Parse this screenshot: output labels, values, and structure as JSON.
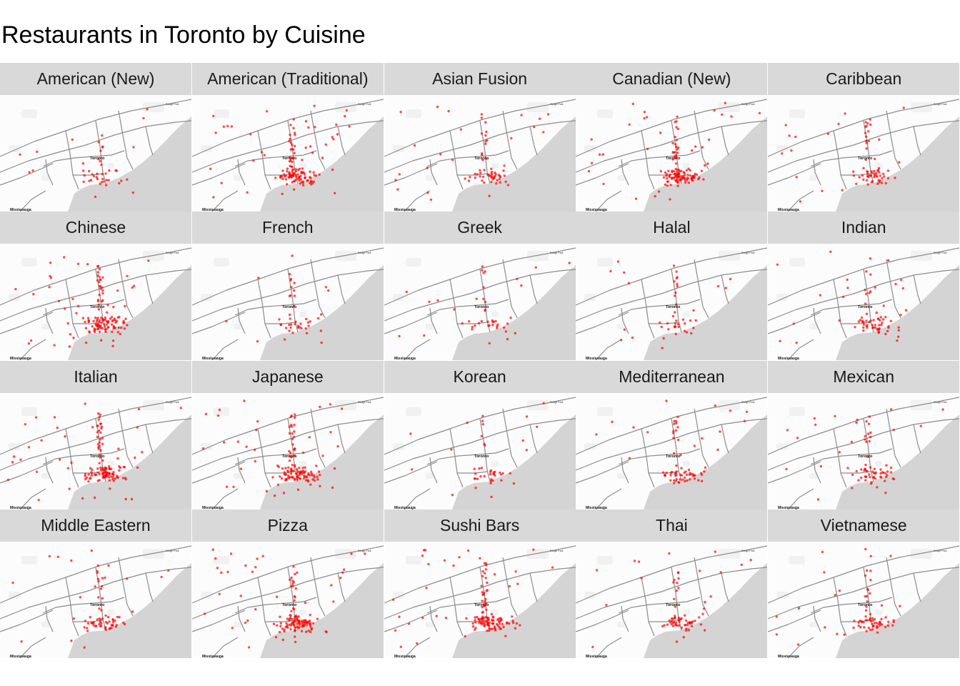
{
  "title": "Restaurants in Toronto by Cuisine",
  "map_labels": {
    "city": "Toronto",
    "west": "Mississauga",
    "park": "Rouge Park"
  },
  "colors": {
    "points": "#ff0000",
    "strip": "#d9d9d9",
    "water": "#d4d4d4",
    "land": "#fcfcfc",
    "roads": "#8c8c8c"
  },
  "panels": [
    {
      "cuisine": "American (New)",
      "density": "low"
    },
    {
      "cuisine": "American (Traditional)",
      "density": "high"
    },
    {
      "cuisine": "Asian Fusion",
      "density": "medium"
    },
    {
      "cuisine": "Canadian (New)",
      "density": "high"
    },
    {
      "cuisine": "Caribbean",
      "density": "medium"
    },
    {
      "cuisine": "Chinese",
      "density": "high"
    },
    {
      "cuisine": "French",
      "density": "low"
    },
    {
      "cuisine": "Greek",
      "density": "low"
    },
    {
      "cuisine": "Halal",
      "density": "low"
    },
    {
      "cuisine": "Indian",
      "density": "medium"
    },
    {
      "cuisine": "Italian",
      "density": "high"
    },
    {
      "cuisine": "Japanese",
      "density": "high"
    },
    {
      "cuisine": "Korean",
      "density": "low"
    },
    {
      "cuisine": "Mediterranean",
      "density": "medium"
    },
    {
      "cuisine": "Mexican",
      "density": "medium"
    },
    {
      "cuisine": "Middle Eastern",
      "density": "medium"
    },
    {
      "cuisine": "Pizza",
      "density": "high"
    },
    {
      "cuisine": "Sushi Bars",
      "density": "high"
    },
    {
      "cuisine": "Thai",
      "density": "medium"
    },
    {
      "cuisine": "Vietnamese",
      "density": "medium"
    }
  ]
}
